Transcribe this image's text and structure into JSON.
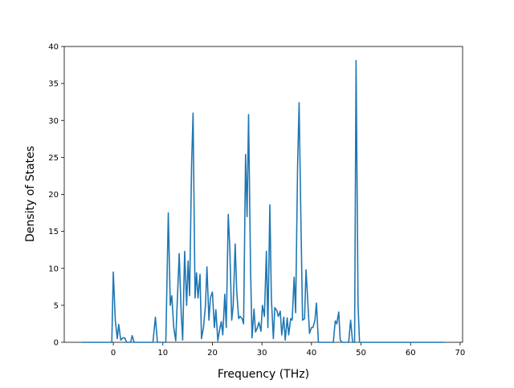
{
  "chart_data": {
    "type": "line",
    "xlabel": "Frequency (THz)",
    "ylabel": "Density of States",
    "xlim": [
      -9.9,
      70.5
    ],
    "ylim": [
      0,
      40
    ],
    "xticks": [
      0,
      10,
      20,
      30,
      40,
      50,
      60,
      70
    ],
    "yticks": [
      0,
      5,
      10,
      15,
      20,
      25,
      30,
      35,
      40
    ],
    "grid": false,
    "series": [
      {
        "color": "#1f77b4",
        "x": [
          -6.3,
          -0.3,
          0,
          0.4,
          0.8,
          1.1,
          1.5,
          1.9,
          2.3,
          2.7,
          3.5,
          3.8,
          4.2,
          8.0,
          8.5,
          8.9,
          10.6,
          11.1,
          11.5,
          11.8,
          12.2,
          12.6,
          13.0,
          13.3,
          13.7,
          14.0,
          14.4,
          14.8,
          15.1,
          15.4,
          15.8,
          16.1,
          16.5,
          16.8,
          17.1,
          17.5,
          17.8,
          18.2,
          18.6,
          18.9,
          19.3,
          19.6,
          20.0,
          20.4,
          20.7,
          21.1,
          21.4,
          21.8,
          22.1,
          22.5,
          22.8,
          23.2,
          23.5,
          23.9,
          24.2,
          24.6,
          24.9,
          25.3,
          25.6,
          26.0,
          26.3,
          26.7,
          27.0,
          27.3,
          27.7,
          28.0,
          28.4,
          28.7,
          29.1,
          29.4,
          29.8,
          30.1,
          30.5,
          30.9,
          31.2,
          31.6,
          31.9,
          32.3,
          32.6,
          33.0,
          33.3,
          33.7,
          34.0,
          34.4,
          34.7,
          35.1,
          35.4,
          35.8,
          36.1,
          36.5,
          36.8,
          37.2,
          37.5,
          37.9,
          38.2,
          38.6,
          38.9,
          39.3,
          39.6,
          40.0,
          40.3,
          40.7,
          41.0,
          41.4,
          44.4,
          44.8,
          45.1,
          45.5,
          45.8,
          46.2,
          47.5,
          47.9,
          48.3,
          48.7,
          49.0,
          49.4,
          49.7,
          66.8
        ],
        "values": [
          0,
          0,
          9.5,
          3,
          0.5,
          2.4,
          0.3,
          0.6,
          0.6,
          0,
          0,
          0.9,
          0,
          0,
          3.4,
          0,
          0,
          17.5,
          5,
          6.3,
          2,
          0.2,
          7,
          12,
          4,
          0.3,
          12.3,
          5,
          11,
          6.3,
          24,
          31,
          6,
          9.4,
          6,
          9.2,
          0.5,
          2,
          5,
          10.2,
          3,
          6,
          6.8,
          2,
          4.4,
          0.2,
          1.5,
          2.8,
          1,
          6.5,
          2,
          17.3,
          13,
          3,
          5,
          13.3,
          7,
          3.2,
          3.5,
          3.2,
          2.5,
          25.4,
          17,
          30.8,
          10,
          0.6,
          4.5,
          1.4,
          2,
          2.7,
          1.5,
          5,
          3.5,
          12.3,
          2,
          18.6,
          6,
          0.5,
          4.7,
          4.3,
          3.5,
          4.2,
          1,
          3.4,
          0.3,
          3.3,
          1,
          3.2,
          3,
          8.8,
          4,
          24,
          32.4,
          15,
          3,
          3.2,
          9.8,
          5,
          1.2,
          2,
          2,
          3,
          5.3,
          0,
          0,
          2.9,
          2.5,
          4.1,
          0.3,
          0,
          0,
          3,
          0,
          0,
          38.1,
          5,
          0,
          0
        ]
      }
    ]
  }
}
